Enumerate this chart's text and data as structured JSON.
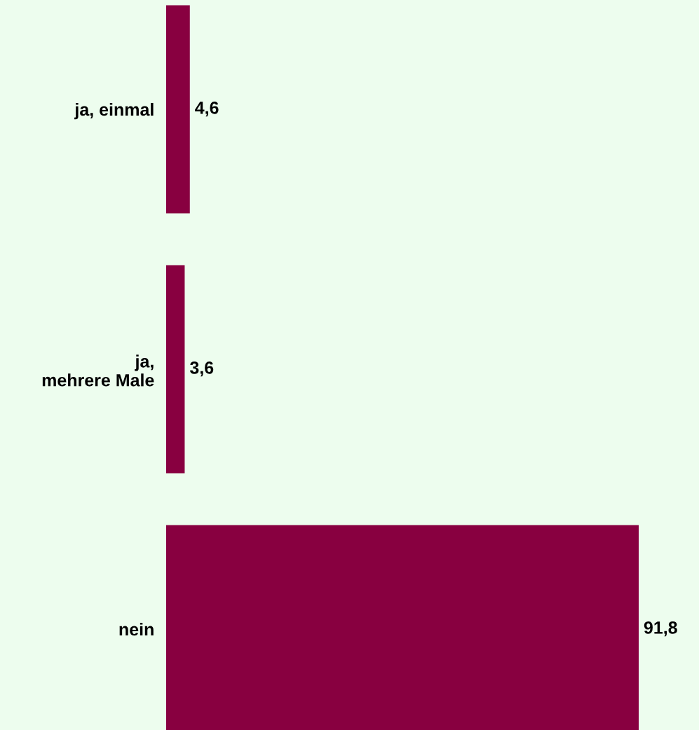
{
  "chart_data": {
    "type": "bar",
    "orientation": "horizontal",
    "categories": [
      "ja, einmal",
      "ja,\nmehrere Male",
      "nein"
    ],
    "values": [
      4.6,
      3.6,
      91.8
    ],
    "value_labels": [
      "4,6",
      "3,6",
      "91,8"
    ],
    "color": "#880040",
    "grid": false,
    "legend": false
  }
}
